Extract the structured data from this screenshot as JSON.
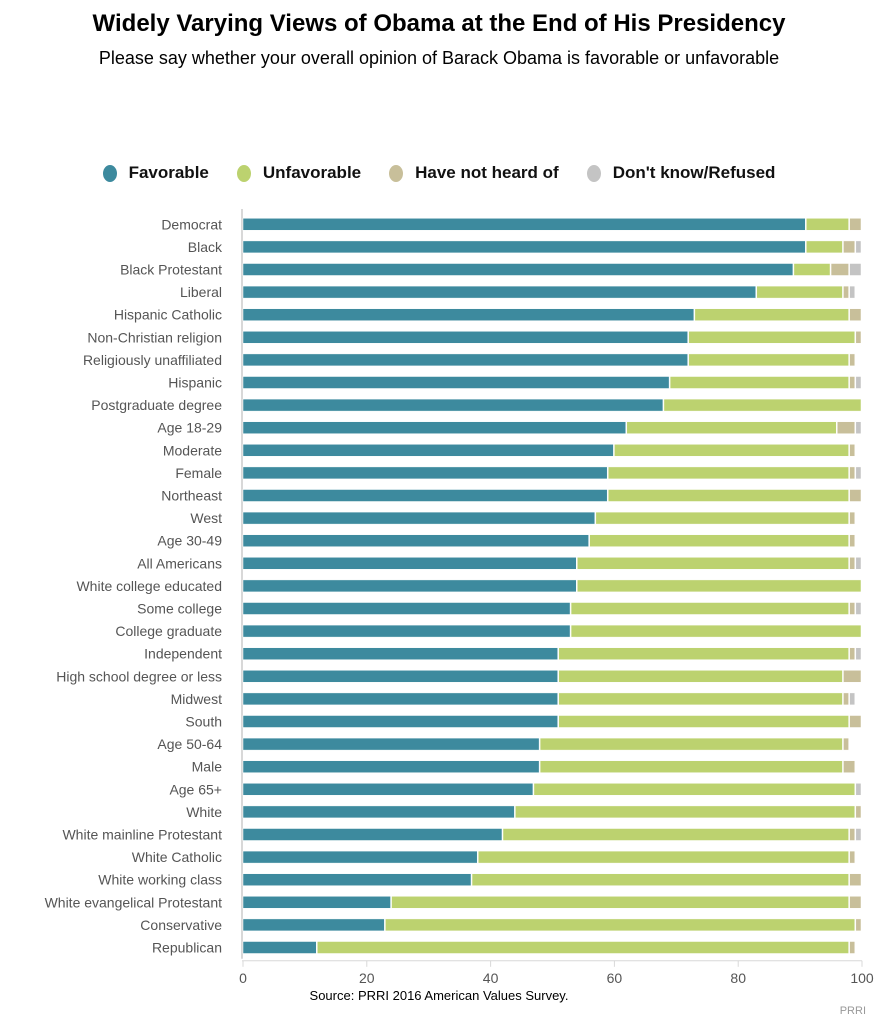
{
  "chart_data": {
    "type": "bar",
    "orientation": "horizontal",
    "stacked": true,
    "title": "Widely Varying Views of Obama at the End of His Presidency",
    "subtitle": "Please say whether your overall opinion of Barack Obama is favorable or unfavorable",
    "xlabel": "",
    "ylabel": "",
    "xlim": [
      0,
      100
    ],
    "xticks": [
      0,
      20,
      40,
      60,
      80,
      100
    ],
    "grid": false,
    "legend_position": "top",
    "source": "Source: PRRI 2016 American Values Survey.",
    "credit": "PRRI",
    "categories": [
      "Democrat",
      "Black",
      "Black Protestant",
      "Liberal",
      "Hispanic Catholic",
      "Non-Christian religion",
      "Religiously unaffiliated",
      "Hispanic",
      "Postgraduate degree",
      "Age 18-29",
      "Moderate",
      "Female",
      "Northeast",
      "West",
      "Age 30-49",
      "All Americans",
      "White college educated",
      "Some college",
      "College graduate",
      "Independent",
      "High school degree or less",
      "Midwest",
      "South",
      "Age 50-64",
      "Male",
      "Age 65+",
      "White",
      "White mainline Protestant",
      "White Catholic",
      "White working class",
      "White evangelical Protestant",
      "Conservative",
      "Republican"
    ],
    "series": [
      {
        "name": "Favorable",
        "color": "#3d8a9e",
        "values": [
          91,
          91,
          89,
          83,
          73,
          72,
          72,
          69,
          68,
          62,
          60,
          59,
          59,
          57,
          56,
          54,
          54,
          53,
          53,
          51,
          51,
          51,
          51,
          48,
          48,
          47,
          44,
          42,
          38,
          37,
          24,
          23,
          12
        ]
      },
      {
        "name": "Unfavorable",
        "color": "#bcd26f",
        "values": [
          7,
          6,
          6,
          14,
          25,
          27,
          26,
          29,
          32,
          34,
          38,
          39,
          39,
          41,
          42,
          44,
          46,
          45,
          47,
          47,
          46,
          46,
          47,
          49,
          49,
          52,
          55,
          56,
          60,
          61,
          74,
          76,
          86
        ]
      },
      {
        "name": "Have not heard of",
        "color": "#c8bf9a",
        "values": [
          2,
          2,
          3,
          1,
          2,
          1,
          1,
          1,
          0,
          3,
          1,
          1,
          2,
          1,
          1,
          1,
          0,
          1,
          0,
          1,
          3,
          1,
          2,
          1,
          2,
          0,
          1,
          1,
          1,
          2,
          2,
          1,
          1
        ]
      },
      {
        "name": "Don't know/Refused",
        "color": "#c4c4c4",
        "values": [
          0,
          1,
          2,
          1,
          0,
          0,
          0,
          1,
          0,
          1,
          0,
          1,
          0,
          0,
          0,
          1,
          0,
          1,
          0,
          1,
          0,
          1,
          0,
          0,
          0,
          1,
          0,
          1,
          0,
          0,
          0,
          0,
          0
        ]
      }
    ]
  }
}
